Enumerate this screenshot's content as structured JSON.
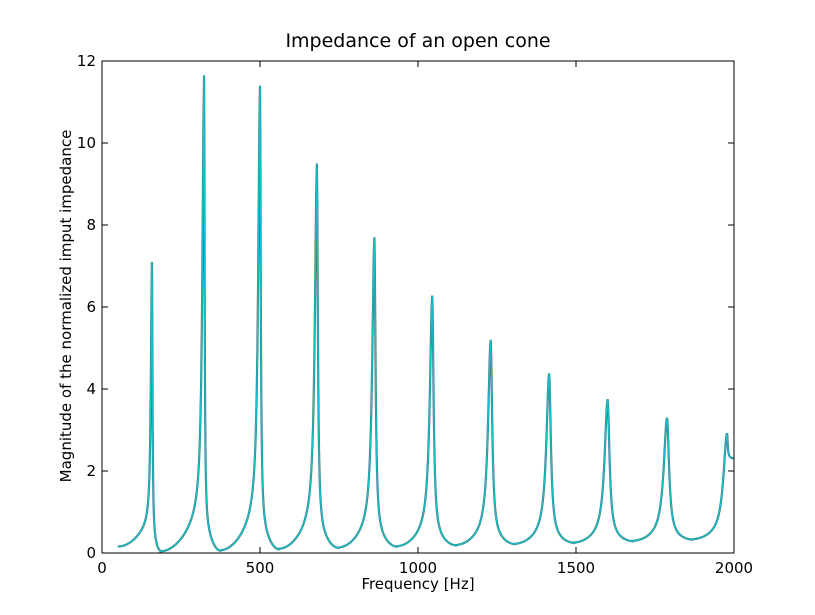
{
  "chart_data": {
    "type": "line",
    "title": "Impedance of an open cone",
    "xlabel": "Frequency [Hz]",
    "ylabel": "Magnitude of the normalized imput impedance",
    "xlim": [
      0,
      2000
    ],
    "ylim": [
      0,
      12
    ],
    "x_ticks": [
      0,
      500,
      1000,
      1500,
      2000
    ],
    "y_ticks": [
      0,
      2,
      4,
      6,
      8,
      10,
      12
    ],
    "grid": false,
    "legend": "none",
    "line_colors": [
      "#3a7a6a",
      "#17becf"
    ],
    "x_range_plotted": [
      50,
      2000
    ],
    "peaks": [
      {
        "x": 158,
        "y": 7.1
      },
      {
        "x": 323,
        "y": 11.65
      },
      {
        "x": 500,
        "y": 11.4
      },
      {
        "x": 680,
        "y": 9.5
      },
      {
        "x": 862,
        "y": 7.7
      },
      {
        "x": 1045,
        "y": 6.28
      },
      {
        "x": 1230,
        "y": 5.2
      },
      {
        "x": 1415,
        "y": 4.38
      },
      {
        "x": 1600,
        "y": 3.75
      },
      {
        "x": 1788,
        "y": 3.3
      },
      {
        "x": 1978,
        "y": 2.92
      }
    ],
    "troughs": [
      {
        "x": 50,
        "y": 0.15
      },
      {
        "x": 185,
        "y": 0.02
      },
      {
        "x": 375,
        "y": 0.04
      },
      {
        "x": 560,
        "y": 0.07
      },
      {
        "x": 748,
        "y": 0.1
      },
      {
        "x": 933,
        "y": 0.13
      },
      {
        "x": 1120,
        "y": 0.16
      },
      {
        "x": 1307,
        "y": 0.19
      },
      {
        "x": 1494,
        "y": 0.22
      },
      {
        "x": 1680,
        "y": 0.26
      },
      {
        "x": 1868,
        "y": 0.3
      },
      {
        "x": 2000,
        "y": 2.3
      }
    ]
  }
}
